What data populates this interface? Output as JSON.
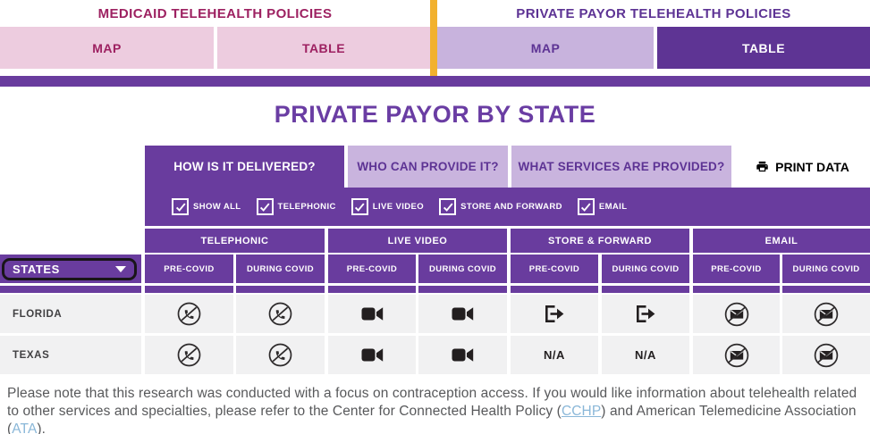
{
  "header": {
    "medicaid": {
      "title": "MEDICAID TELEHEALTH POLICIES",
      "map_tab": "MAP",
      "table_tab": "TABLE"
    },
    "private_payor": {
      "title": "PRIVATE PAYOR TELEHEALTH POLICIES",
      "map_tab": "MAP",
      "table_tab": "TABLE",
      "active_tab": "TABLE"
    }
  },
  "page_title": "PRIVATE PAYOR BY STATE",
  "section_tabs": {
    "delivered": "HOW IS IT DELIVERED?",
    "providers": "WHO CAN PROVIDE IT?",
    "services": "WHAT SERVICES ARE PROVIDED?",
    "active": "HOW IS IT DELIVERED?"
  },
  "print_button": {
    "label": "PRINT DATA"
  },
  "filters": {
    "items": [
      "SHOW ALL",
      "TELEPHONIC",
      "LIVE VIDEO",
      "STORE AND FORWARD",
      "EMAIL"
    ],
    "all_checked": true
  },
  "table": {
    "states_dropdown_label": "STATES",
    "groups": [
      "TELEPHONIC",
      "LIVE VIDEO",
      "STORE & FORWARD",
      "EMAIL"
    ],
    "columns": [
      "PRE-COVID",
      "DURING COVID",
      "PRE-COVID",
      "DURING COVID",
      "PRE-COVID",
      "DURING COVID",
      "PRE-COVID",
      "DURING COVID"
    ],
    "rows": [
      {
        "state": "FLORIDA",
        "cells": [
          "phone-slash",
          "phone-slash",
          "video-camera",
          "video-camera",
          "forward-arrow",
          "forward-arrow",
          "email-slash",
          "email-slash"
        ]
      },
      {
        "state": "TEXAS",
        "cells": [
          "phone-slash",
          "phone-slash",
          "video-camera",
          "video-camera",
          "N/A",
          "N/A",
          "email-slash",
          "email-slash"
        ]
      }
    ]
  },
  "footer": {
    "text_before_link1": "Please note that this research was conducted with a focus on contraception access. If you would like information about telehealth related to other services and specialties, please refer to the Center for Connected Health Policy (",
    "link1": "CCHP",
    "text_between_links": ") and American Telemedicine Association (",
    "link2": "ATA",
    "text_after_link2": ")."
  },
  "colors": {
    "purple": "#693c9e",
    "purple_dark": "#5e3494",
    "lavender": "#c8b3dd",
    "pink": "#edccdf",
    "magenta": "#9d2161",
    "gold": "#f2b12e",
    "cell_gray": "#f1f1f2",
    "link_blue": "#8ab7d8"
  }
}
